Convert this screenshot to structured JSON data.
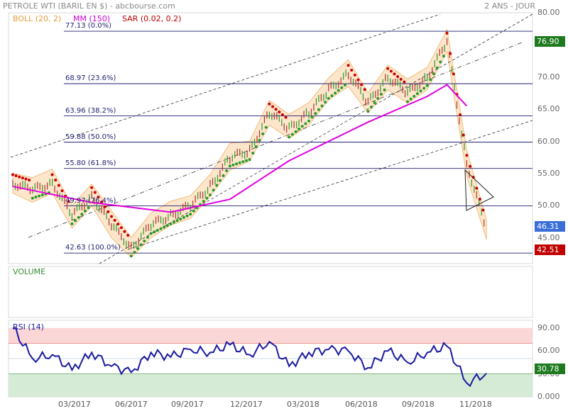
{
  "header": {
    "title": "PETROLE WTI (BARIL EN $) - abcbourse.com",
    "period": "2 ANS - JOUR"
  },
  "legend": {
    "boll": "BOLL (20, 2)",
    "mm": "MM (150)",
    "sar": "SAR (0.02, 0.2)",
    "boll_color": "#f0b060",
    "mm_color": "#e000e0",
    "sar_color": "#cc0000"
  },
  "price_tags": {
    "high": "76.90",
    "current": "46.31",
    "low": "42.51",
    "high_color": "#1e7a1e",
    "current_color": "#3a6fd8",
    "low_color": "#c00000"
  },
  "volume_label": "VOLUME",
  "rsi_label": "RSI (14)",
  "rsi_tag": "30.78",
  "rsi_tag_color": "#1e7a1e",
  "chart_data": [
    {
      "type": "line",
      "name": "price",
      "ylim": [
        41,
        80
      ],
      "yticks": [
        "45.00",
        "50.00",
        "55.00",
        "60.00",
        "65.00",
        "70.00",
        "75.00",
        "80.00"
      ],
      "x_tick_labels": [
        "03/2017",
        "06/2017",
        "09/2017",
        "12/2017",
        "03/2018",
        "06/2018",
        "09/2018",
        "11/2018"
      ],
      "fibonacci": [
        {
          "label": "77.13  (0.0%)",
          "value": 77.13
        },
        {
          "label": "68.97  (23.6%)",
          "value": 68.97
        },
        {
          "label": "63.96  (38.2%)",
          "value": 63.96
        },
        {
          "label": "59.88  (50.0%)",
          "value": 59.88
        },
        {
          "label": "55.80  (61.8%)",
          "value": 55.8
        },
        {
          "label": "49.97  (76.4%)",
          "value": 49.97
        },
        {
          "label": "42.63  (100.0%)",
          "value": 42.63
        }
      ],
      "price_points": [
        {
          "x": "12/2016",
          "y": 53.5
        },
        {
          "x": "01/2017",
          "y": 52.5
        },
        {
          "x": "02/2017",
          "y": 53.5
        },
        {
          "x": "03/2017",
          "y": 48.5
        },
        {
          "x": "04/2017",
          "y": 51.5
        },
        {
          "x": "05/2017",
          "y": 47.0
        },
        {
          "x": "06/2017",
          "y": 43.5
        },
        {
          "x": "07/2017",
          "y": 47.0
        },
        {
          "x": "08/2017",
          "y": 48.5
        },
        {
          "x": "09/2017",
          "y": 50.0
        },
        {
          "x": "10/2017",
          "y": 53.0
        },
        {
          "x": "11/2017",
          "y": 57.5
        },
        {
          "x": "12/2017",
          "y": 58.5
        },
        {
          "x": "01/2018",
          "y": 64.5
        },
        {
          "x": "02/2018",
          "y": 62.0
        },
        {
          "x": "03/2018",
          "y": 64.5
        },
        {
          "x": "04/2018",
          "y": 68.0
        },
        {
          "x": "05/2018",
          "y": 70.5
        },
        {
          "x": "06/2018",
          "y": 66.0
        },
        {
          "x": "07/2018",
          "y": 70.0
        },
        {
          "x": "08/2018",
          "y": 67.5
        },
        {
          "x": "09/2018",
          "y": 70.0
        },
        {
          "x": "10/2018",
          "y": 75.5
        },
        {
          "x": "11/2018",
          "y": 56.5
        },
        {
          "x": "12/2018",
          "y": 46.3
        }
      ],
      "mm150_points": [
        {
          "x": "12/2016",
          "y": 53.0
        },
        {
          "x": "04/2017",
          "y": 50.5
        },
        {
          "x": "08/2017",
          "y": 49.0
        },
        {
          "x": "11/2017",
          "y": 51.0
        },
        {
          "x": "02/2018",
          "y": 57.0
        },
        {
          "x": "06/2018",
          "y": 63.0
        },
        {
          "x": "09/2018",
          "y": 67.0
        },
        {
          "x": "10/2018",
          "y": 68.8
        },
        {
          "x": "11/2018",
          "y": 65.5
        }
      ]
    },
    {
      "type": "line",
      "name": "RSI (14)",
      "ylim": [
        0,
        100
      ],
      "yticks": [
        "0.000",
        "30.00",
        "60.00",
        "90.00"
      ],
      "overbought": 70,
      "oversold": 30,
      "rsi_points": [
        {
          "x": "12/2016",
          "y": 90
        },
        {
          "x": "01/2017",
          "y": 50
        },
        {
          "x": "02/2017",
          "y": 55
        },
        {
          "x": "03/2017",
          "y": 35
        },
        {
          "x": "04/2017",
          "y": 58
        },
        {
          "x": "05/2017",
          "y": 40
        },
        {
          "x": "06/2017",
          "y": 32
        },
        {
          "x": "07/2017",
          "y": 58
        },
        {
          "x": "08/2017",
          "y": 52
        },
        {
          "x": "09/2017",
          "y": 62
        },
        {
          "x": "10/2017",
          "y": 58
        },
        {
          "x": "11/2017",
          "y": 68
        },
        {
          "x": "12/2017",
          "y": 55
        },
        {
          "x": "01/2018",
          "y": 72
        },
        {
          "x": "02/2018",
          "y": 40
        },
        {
          "x": "03/2018",
          "y": 58
        },
        {
          "x": "04/2018",
          "y": 62
        },
        {
          "x": "05/2018",
          "y": 60
        },
        {
          "x": "06/2018",
          "y": 38
        },
        {
          "x": "07/2018",
          "y": 60
        },
        {
          "x": "08/2018",
          "y": 45
        },
        {
          "x": "09/2018",
          "y": 58
        },
        {
          "x": "10/2018",
          "y": 66
        },
        {
          "x": "11/2018",
          "y": 18
        },
        {
          "x": "12/2018",
          "y": 30.78
        }
      ]
    }
  ]
}
